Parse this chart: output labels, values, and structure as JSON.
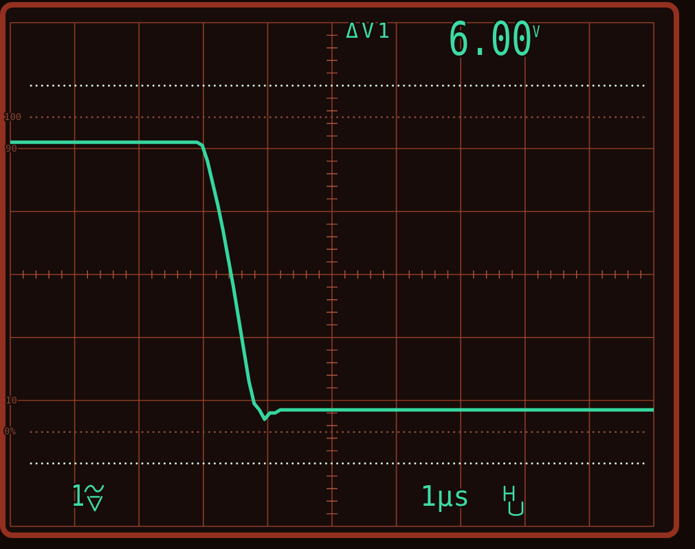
{
  "chart_data": {
    "type": "line",
    "categories": [
      null,
      null,
      null,
      null,
      null,
      null,
      null,
      null,
      null,
      null,
      null,
      null,
      null,
      null,
      null,
      null,
      null,
      null,
      null,
      null,
      null,
      null,
      null,
      null,
      null,
      null,
      null,
      null,
      null,
      null,
      null,
      null,
      null,
      null,
      null,
      null,
      null,
      null,
      null,
      null,
      null,
      null,
      null,
      null,
      null,
      null,
      null,
      null,
      null,
      null,
      null,
      null,
      null,
      null,
      null,
      null,
      null,
      null,
      null,
      null,
      null,
      null,
      null,
      null,
      null,
      null,
      null,
      null,
      null,
      null,
      null,
      null,
      null,
      null,
      null,
      null,
      null,
      null,
      null,
      null,
      null,
      null,
      null,
      null,
      null,
      null,
      null,
      null,
      null,
      null,
      null,
      null,
      null,
      null,
      null,
      null,
      null,
      null,
      null,
      null,
      null,
      null,
      null,
      null,
      null,
      null,
      null,
      null,
      null,
      null,
      null,
      null,
      null,
      null,
      null,
      null,
      null,
      null,
      null,
      null,
      null,
      null,
      null,
      null,
      null
    ],
    "series": [
      {
        "color": "#36d6a0",
        "values": [
          92,
          92,
          92,
          92,
          92,
          92,
          92,
          92,
          92,
          92,
          92,
          92,
          92,
          92,
          92,
          92,
          92,
          92,
          92,
          92,
          92,
          92,
          92,
          92,
          92,
          92,
          92,
          92,
          92,
          92,
          92,
          92,
          92,
          92,
          92,
          92,
          92,
          91,
          86,
          79,
          72,
          64,
          55,
          46,
          36,
          26,
          16,
          9,
          7,
          4,
          6,
          6,
          7,
          7,
          7,
          7,
          7,
          7,
          7,
          7,
          7,
          7,
          7,
          7,
          7,
          7,
          7,
          7,
          7,
          7,
          7,
          7,
          7,
          7,
          7,
          7,
          7,
          7,
          7,
          7,
          7,
          7,
          7,
          7,
          7,
          7,
          7,
          7,
          7,
          7,
          7,
          7,
          7,
          7,
          7,
          7,
          7,
          7,
          7,
          7,
          7,
          7,
          7,
          7,
          7,
          7,
          7,
          7,
          7,
          7,
          7,
          7,
          7,
          7,
          7,
          7,
          7,
          7,
          7,
          7,
          7,
          7,
          7,
          7,
          7
        ]
      }
    ],
    "ylim": [
      -30,
      130
    ],
    "yticks": [
      {
        "value": -30,
        "label": null
      },
      10,
      {
        "value": 30,
        "label": null
      },
      {
        "value": 50,
        "label": null
      },
      {
        "value": 70,
        "label": null
      },
      90,
      {
        "value": 130,
        "label": null
      }
    ],
    "tick_labels": "y",
    "grid": true,
    "ref_lines": [
      {
        "axis": "y",
        "value": 100,
        "label": "100",
        "color": "#8a4436",
        "line_style": "dotted"
      },
      {
        "axis": "y",
        "value": 0,
        "label": "0%",
        "color": "#8a4436",
        "line_style": "dotted"
      },
      {
        "axis": "y",
        "value": 110,
        "color": "#d6f2dc",
        "line_style": "dotted"
      },
      {
        "axis": "y",
        "value": -10,
        "color": "#d6f2dc",
        "line_style": "dotted"
      }
    ],
    "annotations": [
      "ΔV1",
      "6.00$^{V}$",
      "1",
      "1μs"
    ]
  }
}
